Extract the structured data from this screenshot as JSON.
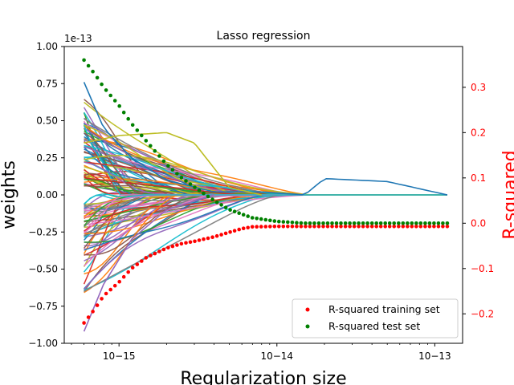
{
  "chart_data": {
    "type": "line",
    "title": "Lasso regression",
    "xlabel": "Regularization size",
    "ylabel_left": "weights",
    "ylabel_right": "R-squared",
    "left_axis_offset_label": "1e-13",
    "x_scale": "log",
    "x_range": [
      4.5e-16,
      1.5e-13
    ],
    "x_ticks": [
      1e-15,
      1e-14,
      1e-13
    ],
    "x_tick_labels": [
      "10−15",
      "10−14",
      "10−13"
    ],
    "y_left_range": [
      -1.0,
      1.0
    ],
    "y_left_ticks": [
      1.0,
      0.75,
      0.5,
      0.25,
      0.0,
      -0.25,
      -0.5,
      -0.75,
      -1.0
    ],
    "y_left_tick_labels": [
      "1.00",
      "0.75",
      "0.50",
      "0.25",
      "0.00",
      "−0.25",
      "−0.50",
      "−0.75",
      "−1.00"
    ],
    "y_right_range": [
      -0.265,
      0.39
    ],
    "y_right_ticks": [
      0.3,
      0.2,
      0.1,
      0.0,
      -0.1,
      -0.2
    ],
    "y_right_tick_labels": [
      "0.3",
      "0.2",
      "0.1",
      "0.0",
      "−0.1",
      "−0.2"
    ],
    "right_axis_color": "#ff0000",
    "grid": false,
    "legend_position": "lower-right",
    "legend": [
      {
        "label": "R-squared training set",
        "color": "#ff0000",
        "marker": "circle"
      },
      {
        "label": "R-squared test set",
        "color": "#008000",
        "marker": "circle"
      }
    ],
    "weight_paths": {
      "count": 120,
      "x_range": [
        6e-16,
        1.2e-13
      ],
      "description_colors": [
        "#1f77b4",
        "#ff7f0e",
        "#2ca02c",
        "#d62728",
        "#9467bd",
        "#8c564b",
        "#e377c2",
        "#7f7f7f",
        "#bcbd22",
        "#17becf"
      ],
      "notable": [
        {
          "name": "weight-peak-blue",
          "color": "#1f77b4",
          "x": [
            6e-16,
            8e-16,
            1.2e-15,
            2e-15,
            4e-15,
            8e-15,
            1.5e-14,
            2e-14,
            5e-14,
            1.2e-13
          ],
          "y": [
            0.76,
            0.45,
            0.25,
            0.1,
            0.02,
            0.02,
            0.0,
            0.11,
            0.09,
            0.0
          ]
        },
        {
          "name": "weight-olive",
          "color": "#bcbd22",
          "x": [
            6e-16,
            1e-15,
            2e-15,
            3e-15,
            5e-15,
            8e-15
          ],
          "y": [
            0.35,
            0.4,
            0.42,
            0.35,
            0.05,
            0.0
          ]
        },
        {
          "name": "weight-lowest",
          "color": "#9467bd",
          "x": [
            6e-16,
            8e-16,
            1.2e-15,
            2e-15,
            4e-15
          ],
          "y": [
            -0.92,
            -0.6,
            -0.3,
            -0.1,
            0.0
          ]
        }
      ]
    },
    "series": [
      {
        "name": "R-squared training set",
        "axis": "right",
        "color": "#ff0000",
        "x": [
          6e-16,
          7e-16,
          8e-16,
          1e-15,
          1.2e-15,
          1.5e-15,
          2e-15,
          2.5e-15,
          3e-15,
          4e-15,
          5e-15,
          6e-15,
          7e-15,
          1e-14,
          2e-14,
          5e-14,
          1.2e-13
        ],
        "y": [
          -0.22,
          -0.19,
          -0.16,
          -0.13,
          -0.1,
          -0.075,
          -0.055,
          -0.045,
          -0.04,
          -0.03,
          -0.02,
          -0.012,
          -0.008,
          -0.007,
          -0.007,
          -0.007,
          -0.007
        ]
      },
      {
        "name": "R-squared test set",
        "axis": "right",
        "color": "#008000",
        "x": [
          6e-16,
          7e-16,
          8e-16,
          1e-15,
          1.2e-15,
          1.5e-15,
          2e-15,
          2.5e-15,
          3e-15,
          4e-15,
          5e-15,
          6e-15,
          7e-15,
          1e-14,
          1.5e-14,
          2e-14,
          5e-14,
          1.2e-13
        ],
        "y": [
          0.36,
          0.33,
          0.3,
          0.26,
          0.22,
          0.18,
          0.13,
          0.1,
          0.08,
          0.05,
          0.03,
          0.02,
          0.012,
          0.004,
          0.0,
          0.0,
          0.0,
          0.0
        ]
      }
    ]
  }
}
